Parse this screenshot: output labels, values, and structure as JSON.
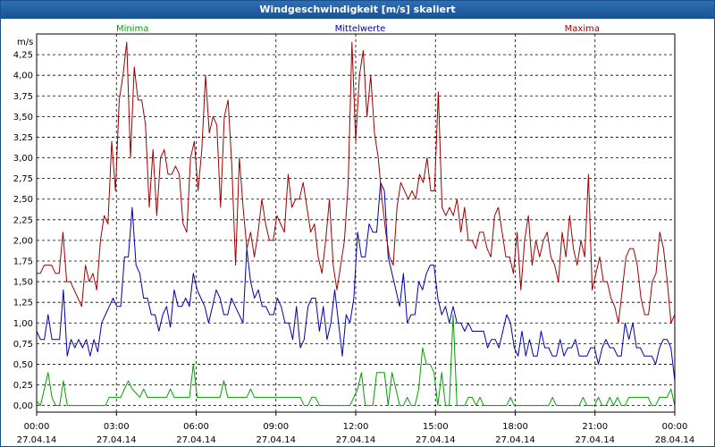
{
  "window": {
    "title": "Windgeschwindigkeit [m/s] skaliert"
  },
  "colors": {
    "frame": "#1a4f8a",
    "titlebar": "#1f5c9e",
    "grid": "#000000",
    "axis_text": "#000000"
  },
  "chart_data": {
    "type": "line",
    "title": "Windgeschwindigkeit [m/s] skaliert",
    "ylabel": "m/s",
    "xlabel": "",
    "ylim": [
      -0.08,
      4.5
    ],
    "xlim": [
      0,
      24
    ],
    "grid": true,
    "yticks": [
      "0,00",
      "0,25",
      "0,50",
      "0,75",
      "1,00",
      "1,25",
      "1,50",
      "1,75",
      "2,00",
      "2,25",
      "2,50",
      "2,75",
      "3,00",
      "3,25",
      "3,50",
      "3,75",
      "4,00",
      "4,25"
    ],
    "xticks": [
      {
        "time": "00:00",
        "date": "27.04.14"
      },
      {
        "time": "03:00",
        "date": "27.04.14"
      },
      {
        "time": "06:00",
        "date": "27.04.14"
      },
      {
        "time": "09:00",
        "date": "27.04.14"
      },
      {
        "time": "12:00",
        "date": "27.04.14"
      },
      {
        "time": "15:00",
        "date": "27.04.14"
      },
      {
        "time": "18:00",
        "date": "27.04.14"
      },
      {
        "time": "21:00",
        "date": "27.04.14"
      },
      {
        "time": "00:00",
        "date": "28.04.14"
      }
    ],
    "legend_position": "top",
    "series": [
      {
        "name": "Minima",
        "color": "#00a000",
        "values": [
          0.05,
          0.0,
          0.2,
          0.4,
          0.1,
          0.0,
          0.0,
          0.3,
          0.0,
          0.0,
          0.0,
          0.0,
          0.0,
          0.0,
          0.0,
          0.0,
          0.0,
          0.0,
          0.0,
          0.1,
          0.1,
          0.1,
          0.1,
          0.2,
          0.3,
          0.2,
          0.15,
          0.1,
          0.2,
          0.1,
          0.1,
          0.1,
          0.1,
          0.1,
          0.1,
          0.2,
          0.1,
          0.1,
          0.1,
          0.1,
          0.1,
          0.5,
          0.1,
          0.1,
          0.1,
          0.1,
          0.1,
          0.1,
          0.1,
          0.3,
          0.1,
          0.1,
          0.1,
          0.1,
          0.1,
          0.1,
          0.2,
          0.1,
          0.1,
          0.1,
          0.1,
          0.1,
          0.1,
          0.1,
          0.1,
          0.1,
          0.1,
          0.1,
          0.1,
          0.1,
          0.0,
          0.0,
          0.1,
          0.1,
          0.0,
          0.0,
          0.0,
          0.0,
          0.0,
          0.0,
          0.0,
          0.0,
          0.0,
          0.1,
          0.2,
          0.4,
          0.0,
          0.0,
          0.0,
          0.4,
          0.4,
          0.4,
          0.0,
          0.4,
          0.2,
          0.0,
          0.0,
          0.1,
          0.0,
          0.0,
          0.2,
          0.7,
          0.5,
          0.5,
          0.4,
          0.0,
          0.4,
          0.0,
          0.0,
          1.1,
          0.0,
          0.0,
          0.0,
          0.1,
          0.1,
          0.0,
          0.1,
          0.0,
          0.0,
          0.0,
          0.0,
          0.0,
          0.0,
          0.0,
          0.1,
          0.0,
          0.0,
          0.0,
          0.0,
          0.0,
          0.0,
          0.0,
          0.0,
          0.0,
          0.0,
          0.1,
          0.0,
          0.0,
          0.0,
          0.0,
          0.0,
          0.0,
          0.0,
          0.1,
          0.0,
          0.0,
          0.0,
          0.1,
          0.0,
          0.0,
          0.1,
          0.0,
          0.1,
          0.0,
          0.0,
          0.1,
          0.1,
          0.1,
          0.1,
          0.1,
          0.1,
          0.0,
          0.0,
          0.1,
          0.1,
          0.1,
          0.2,
          0.0
        ]
      },
      {
        "name": "Mittelwerte",
        "color": "#0000b0",
        "values": [
          0.9,
          0.8,
          0.8,
          1.1,
          0.8,
          0.8,
          0.8,
          1.4,
          0.6,
          0.8,
          0.7,
          0.8,
          0.7,
          0.8,
          0.6,
          0.8,
          0.65,
          1.0,
          1.1,
          1.2,
          1.3,
          1.2,
          1.2,
          1.8,
          1.8,
          2.4,
          1.7,
          1.6,
          1.3,
          1.3,
          1.1,
          1.1,
          0.9,
          1.1,
          1.2,
          0.95,
          1.4,
          1.2,
          1.2,
          1.3,
          1.2,
          1.6,
          1.4,
          1.3,
          1.2,
          1.0,
          1.2,
          1.4,
          1.3,
          1.1,
          1.1,
          1.3,
          1.2,
          1.1,
          1.0,
          1.9,
          1.5,
          1.3,
          1.4,
          1.2,
          1.2,
          1.1,
          1.1,
          1.3,
          1.2,
          1.0,
          1.0,
          0.8,
          1.2,
          0.7,
          0.8,
          1.2,
          1.3,
          1.3,
          0.9,
          1.2,
          0.8,
          1.0,
          1.4,
          1.0,
          0.6,
          1.1,
          1.0,
          1.3,
          2.1,
          1.8,
          1.8,
          2.2,
          2.1,
          2.1,
          2.7,
          2.6,
          1.8,
          1.6,
          1.4,
          1.2,
          1.6,
          1.0,
          1.1,
          1.1,
          1.5,
          1.4,
          1.6,
          1.7,
          1.7,
          1.3,
          1.1,
          1.2,
          1.0,
          1.2,
          1.0,
          1.0,
          0.9,
          1.0,
          0.9,
          0.9,
          0.9,
          0.9,
          0.7,
          0.8,
          0.8,
          0.7,
          0.9,
          1.1,
          1.0,
          0.7,
          0.6,
          0.9,
          0.6,
          0.8,
          0.6,
          0.6,
          0.9,
          0.7,
          0.7,
          0.6,
          0.6,
          0.8,
          0.6,
          0.7,
          0.7,
          0.8,
          0.6,
          0.6,
          0.6,
          0.7,
          0.7,
          0.5,
          0.7,
          0.8,
          0.7,
          0.7,
          0.6,
          0.6,
          1.0,
          0.8,
          1.0,
          0.7,
          0.7,
          0.6,
          0.6,
          0.6,
          0.5,
          0.7,
          0.8,
          0.8,
          0.7,
          0.3
        ]
      },
      {
        "name": "Maxima",
        "color": "#a00000",
        "values": [
          1.6,
          1.6,
          1.7,
          1.7,
          1.7,
          1.6,
          1.6,
          2.1,
          1.5,
          1.5,
          1.4,
          1.3,
          1.2,
          1.7,
          1.5,
          1.6,
          1.4,
          2.0,
          2.3,
          2.2,
          3.2,
          2.6,
          3.7,
          4.0,
          4.4,
          3.0,
          4.1,
          3.7,
          3.7,
          3.4,
          2.4,
          3.1,
          2.3,
          3.0,
          3.1,
          2.8,
          2.8,
          2.9,
          2.8,
          2.2,
          2.1,
          3.0,
          3.2,
          2.6,
          3.1,
          4.0,
          3.3,
          3.5,
          3.4,
          2.4,
          3.5,
          3.7,
          2.9,
          1.7,
          3.0,
          2.4,
          1.9,
          2.1,
          1.8,
          2.1,
          2.5,
          2.2,
          2.0,
          2.0,
          2.3,
          2.2,
          2.1,
          2.8,
          2.4,
          2.5,
          2.5,
          2.7,
          2.4,
          2.1,
          2.2,
          1.8,
          1.6,
          2.0,
          2.5,
          1.7,
          1.4,
          1.7,
          2.0,
          2.7,
          4.4,
          3.2,
          4.0,
          4.3,
          3.5,
          4.0,
          3.3,
          3.0,
          2.5,
          2.1,
          1.8,
          1.7,
          2.4,
          2.7,
          2.6,
          2.5,
          2.6,
          2.5,
          2.8,
          2.7,
          3.0,
          2.6,
          2.6,
          3.8,
          2.4,
          2.3,
          2.4,
          2.3,
          2.5,
          2.1,
          2.4,
          2.0,
          2.0,
          1.9,
          2.1,
          2.1,
          1.9,
          1.8,
          2.3,
          2.4,
          2.1,
          1.8,
          1.8,
          1.6,
          2.1,
          1.4,
          2.0,
          2.3,
          1.7,
          2.0,
          1.8,
          2.0,
          2.1,
          1.8,
          1.7,
          1.5,
          2.1,
          1.8,
          2.3,
          1.9,
          1.7,
          2.0,
          1.8,
          2.8,
          1.4,
          1.6,
          1.8,
          1.5,
          1.5,
          1.3,
          1.2,
          1.0,
          1.4,
          1.8,
          1.9,
          1.9,
          1.7,
          1.3,
          1.1,
          1.1,
          1.5,
          1.6,
          2.1,
          1.9,
          1.5,
          1.0,
          1.1
        ]
      }
    ]
  }
}
